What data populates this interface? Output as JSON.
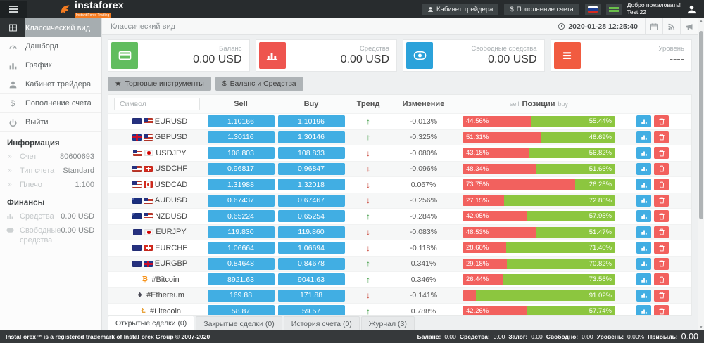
{
  "topbar": {
    "brand": "instaforex",
    "brand_sub": "Instant Forex Trading",
    "trader_cabinet_label": "Кабинет трейдера",
    "deposit_label": "Пополнение счета",
    "welcome1": "Добро пожаловать!",
    "welcome2": "Test 22",
    "icons": {
      "menu": "hamburger-icon",
      "logo": "instaforex-logo-icon",
      "lang1": "russian-flag-icon",
      "lang2": "green-flag-icon",
      "user": "user-avatar-icon"
    }
  },
  "sidebar": {
    "menu": [
      {
        "label": "Классический вид",
        "icon": "grid-icon",
        "active": true
      },
      {
        "label": "Дашборд",
        "icon": "dashboard-gauge-icon"
      },
      {
        "label": "График",
        "icon": "bar-chart-icon"
      },
      {
        "label": "Кабинет трейдера",
        "icon": "person-icon"
      },
      {
        "label": "Пополнение счета",
        "icon": "dollar-icon"
      },
      {
        "label": "Выйти",
        "icon": "power-icon"
      }
    ],
    "info": {
      "header": "Информация",
      "rows": [
        {
          "label": "Счет",
          "value": "80600693"
        },
        {
          "label": "Тип счета",
          "value": "Standard"
        },
        {
          "label": "Плечо",
          "value": "1:100"
        }
      ]
    },
    "finance": {
      "header": "Финансы",
      "rows": [
        {
          "label": "Средства",
          "value": "0.00 USD",
          "icon": "bar-chart-icon"
        },
        {
          "label": "Свободные средства",
          "value": "0.00 USD",
          "icon": "coins-icon"
        }
      ]
    }
  },
  "main": {
    "title": "Классический вид",
    "datetime": "2020-01-28 12:25:40",
    "head_icons": [
      "calendar-icon",
      "rss-icon",
      "megaphone-icon"
    ],
    "cards": [
      {
        "label": "Баланс",
        "value": "0.00 USD",
        "color": "#61bd5f",
        "icon": "credit-card-icon"
      },
      {
        "label": "Средства",
        "value": "0.00 USD",
        "color": "#ee544e",
        "icon": "bar-chart-icon"
      },
      {
        "label": "Свободные средства",
        "value": "0.00 USD",
        "color": "#2ba2da",
        "icon": "coins-icon"
      },
      {
        "label": "Уровень",
        "value": "----",
        "color": "#f15b40",
        "icon": "menu-bars-icon"
      }
    ],
    "toolbar": {
      "instruments_label": "Торговые инструменты",
      "balance_label": "Баланс и Средства"
    },
    "table": {
      "symbol_placeholder": "Символ",
      "headers": {
        "sell": "Sell",
        "buy": "Buy",
        "trend": "Тренд",
        "change": "Изменение",
        "pos_left": "sell",
        "pos_center": "Позиции",
        "pos_right": "buy"
      },
      "rows": [
        {
          "symbol": "EURUSD",
          "flags": [
            "eu",
            "us"
          ],
          "sell": "1.10166",
          "buy": "1.10196",
          "trend": "up",
          "change": "-0.013%",
          "sell_pct": 44.56,
          "buy_pct": 55.44,
          "sell_label": "44.56%",
          "buy_label": "55.44%"
        },
        {
          "symbol": "GBPUSD",
          "flags": [
            "gb",
            "us"
          ],
          "sell": "1.30116",
          "buy": "1.30146",
          "trend": "up",
          "change": "-0.325%",
          "sell_pct": 51.31,
          "buy_pct": 48.69,
          "sell_label": "51.31%",
          "buy_label": "48.69%"
        },
        {
          "symbol": "USDJPY",
          "flags": [
            "us",
            "jp"
          ],
          "sell": "108.803",
          "buy": "108.833",
          "trend": "down",
          "change": "-0.080%",
          "sell_pct": 43.18,
          "buy_pct": 56.82,
          "sell_label": "43.18%",
          "buy_label": "56.82%"
        },
        {
          "symbol": "USDCHF",
          "flags": [
            "us",
            "ch"
          ],
          "sell": "0.96817",
          "buy": "0.96847",
          "trend": "down",
          "change": "-0.096%",
          "sell_pct": 48.34,
          "buy_pct": 51.66,
          "sell_label": "48.34%",
          "buy_label": "51.66%"
        },
        {
          "symbol": "USDCAD",
          "flags": [
            "us",
            "ca"
          ],
          "sell": "1.31988",
          "buy": "1.32018",
          "trend": "down",
          "change": "0.067%",
          "sell_pct": 73.75,
          "buy_pct": 26.25,
          "sell_label": "73.75%",
          "buy_label": "26.25%"
        },
        {
          "symbol": "AUDUSD",
          "flags": [
            "au",
            "us"
          ],
          "sell": "0.67437",
          "buy": "0.67467",
          "trend": "down",
          "change": "-0.256%",
          "sell_pct": 27.15,
          "buy_pct": 72.85,
          "sell_label": "27.15%",
          "buy_label": "72.85%"
        },
        {
          "symbol": "NZDUSD",
          "flags": [
            "nz",
            "us"
          ],
          "sell": "0.65224",
          "buy": "0.65254",
          "trend": "up",
          "change": "-0.284%",
          "sell_pct": 42.05,
          "buy_pct": 57.95,
          "sell_label": "42.05%",
          "buy_label": "57.95%"
        },
        {
          "symbol": "EURJPY",
          "flags": [
            "eu",
            "jp"
          ],
          "sell": "119.830",
          "buy": "119.860",
          "trend": "down",
          "change": "-0.083%",
          "sell_pct": 48.53,
          "buy_pct": 51.47,
          "sell_label": "48.53%",
          "buy_label": "51.47%"
        },
        {
          "symbol": "EURCHF",
          "flags": [
            "eu",
            "ch"
          ],
          "sell": "1.06664",
          "buy": "1.06694",
          "trend": "down",
          "change": "-0.118%",
          "sell_pct": 28.6,
          "buy_pct": 71.4,
          "sell_label": "28.60%",
          "buy_label": "71.40%"
        },
        {
          "symbol": "EURGBP",
          "flags": [
            "eu",
            "gb"
          ],
          "sell": "0.84648",
          "buy": "0.84678",
          "trend": "up",
          "change": "0.341%",
          "sell_pct": 29.18,
          "buy_pct": 70.82,
          "sell_label": "29.18%",
          "buy_label": "70.82%"
        },
        {
          "symbol": "#Bitcoin",
          "crypto": "btc",
          "sell": "8921.63",
          "buy": "9041.63",
          "trend": "up",
          "change": "0.346%",
          "sell_pct": 26.44,
          "buy_pct": 73.56,
          "sell_label": "26.44%",
          "buy_label": "73.56%"
        },
        {
          "symbol": "#Ethereum",
          "crypto": "eth",
          "sell": "169.88",
          "buy": "171.88",
          "trend": "down",
          "change": "-0.141%",
          "sell_pct": 8.98,
          "buy_pct": 91.02,
          "sell_label": "",
          "buy_label": "91.02%"
        },
        {
          "symbol": "#Litecoin",
          "crypto": "ltc",
          "sell": "58.87",
          "buy": "59.57",
          "trend": "up",
          "change": "0.788%",
          "sell_pct": 42.26,
          "buy_pct": 57.74,
          "sell_label": "42.26%",
          "buy_label": "57.74%"
        },
        {
          "symbol": "",
          "sell": "",
          "buy": "",
          "trend": "",
          "change": "",
          "sell_pct": 5,
          "buy_pct": 95,
          "sell_label": "",
          "buy_label": "",
          "partial": true
        }
      ]
    },
    "tabs": [
      {
        "label": "Открытые сделки (0)",
        "active": true
      },
      {
        "label": "Закрытые сделки (0)",
        "active": false
      },
      {
        "label": "История счета (0)",
        "active": false
      },
      {
        "label": "Журнал (3)",
        "active": false
      }
    ]
  },
  "footer": {
    "copyright": "InstaForex™ is a registered trademark of InstaForex Group © 2007-2020",
    "stats": [
      {
        "label": "Баланс:",
        "value": "0.00",
        "big": false
      },
      {
        "label": "Средства:",
        "value": "0.00",
        "big": false
      },
      {
        "label": "Залог:",
        "value": "0.00",
        "big": false
      },
      {
        "label": "Свободно:",
        "value": "0.00",
        "big": false
      },
      {
        "label": "Уровень:",
        "value": "0.00%",
        "big": false
      },
      {
        "label": "Прибыль:",
        "value": "0.00",
        "big": true
      }
    ]
  }
}
